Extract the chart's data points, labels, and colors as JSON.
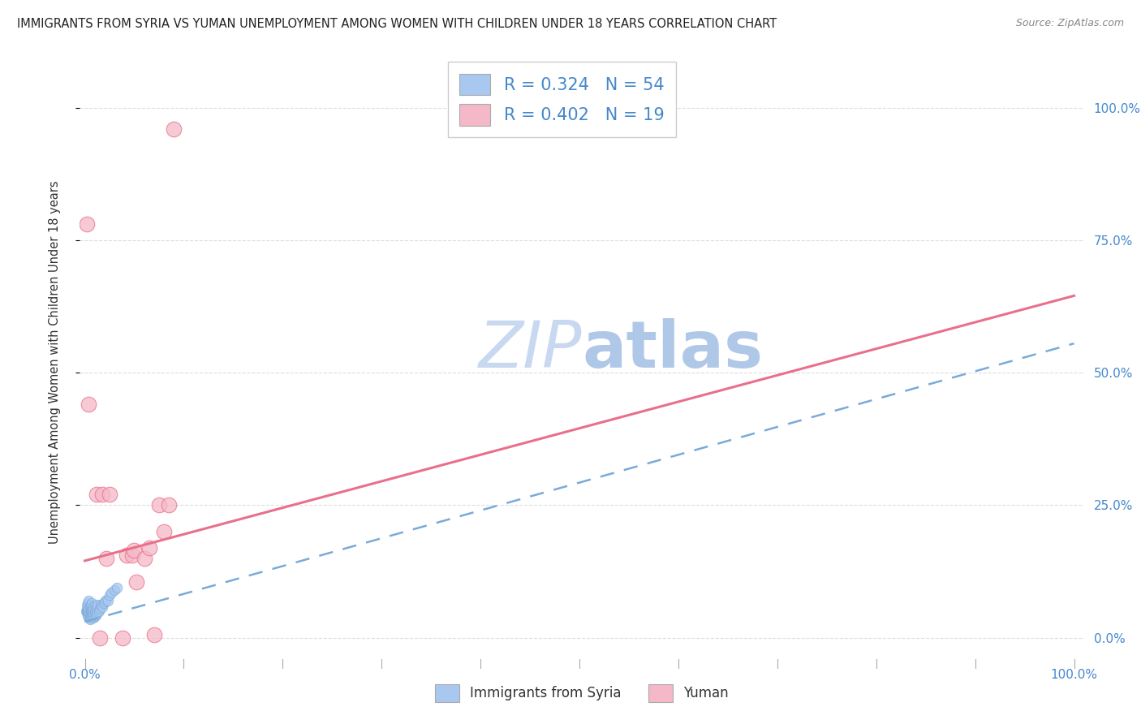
{
  "title": "IMMIGRANTS FROM SYRIA VS YUMAN UNEMPLOYMENT AMONG WOMEN WITH CHILDREN UNDER 18 YEARS CORRELATION CHART",
  "source": "Source: ZipAtlas.com",
  "ylabel": "Unemployment Among Women with Children Under 18 years",
  "ytick_labels_right": [
    "100.0%",
    "75.0%",
    "50.0%",
    "25.0%",
    "0.0%"
  ],
  "ytick_values": [
    1.0,
    0.75,
    0.5,
    0.25,
    0.0
  ],
  "legend_label1": "Immigrants from Syria",
  "legend_label2": "Yuman",
  "legend_r1": "R = 0.324",
  "legend_n1": "N = 54",
  "legend_r2": "R = 0.402",
  "legend_n2": "N = 19",
  "blue_color": "#a8c8f0",
  "pink_color": "#f5b8c8",
  "trendline_blue_color": "#7aaad8",
  "trendline_pink_color": "#e8708a",
  "watermark_zip_color": "#c8d8f0",
  "watermark_atlas_color": "#b0c8e8",
  "background_color": "#ffffff",
  "grid_color": "#dddddd",
  "tick_color": "#4488cc",
  "blue_x": [
    0.001,
    0.002,
    0.002,
    0.002,
    0.003,
    0.003,
    0.003,
    0.003,
    0.003,
    0.004,
    0.004,
    0.004,
    0.004,
    0.004,
    0.005,
    0.005,
    0.005,
    0.005,
    0.006,
    0.006,
    0.006,
    0.006,
    0.007,
    0.007,
    0.007,
    0.007,
    0.008,
    0.008,
    0.008,
    0.009,
    0.009,
    0.009,
    0.01,
    0.01,
    0.01,
    0.011,
    0.011,
    0.012,
    0.012,
    0.013,
    0.013,
    0.014,
    0.015,
    0.016,
    0.017,
    0.018,
    0.019,
    0.02,
    0.022,
    0.023,
    0.025,
    0.027,
    0.03,
    0.032
  ],
  "blue_y": [
    0.05,
    0.048,
    0.052,
    0.06,
    0.042,
    0.045,
    0.05,
    0.055,
    0.065,
    0.038,
    0.04,
    0.048,
    0.055,
    0.07,
    0.035,
    0.04,
    0.05,
    0.06,
    0.038,
    0.045,
    0.052,
    0.06,
    0.04,
    0.048,
    0.055,
    0.065,
    0.042,
    0.05,
    0.058,
    0.038,
    0.045,
    0.055,
    0.04,
    0.05,
    0.06,
    0.042,
    0.055,
    0.045,
    0.058,
    0.048,
    0.062,
    0.05,
    0.055,
    0.06,
    0.062,
    0.058,
    0.065,
    0.068,
    0.072,
    0.07,
    0.08,
    0.085,
    0.09,
    0.095
  ],
  "pink_x": [
    0.002,
    0.004,
    0.012,
    0.015,
    0.018,
    0.022,
    0.025,
    0.038,
    0.042,
    0.048,
    0.05,
    0.052,
    0.06,
    0.065,
    0.07,
    0.075,
    0.08,
    0.085,
    0.09
  ],
  "pink_y": [
    0.78,
    0.44,
    0.27,
    0.0,
    0.27,
    0.15,
    0.27,
    0.0,
    0.155,
    0.155,
    0.165,
    0.105,
    0.15,
    0.17,
    0.005,
    0.25,
    0.2,
    0.25,
    0.96
  ],
  "blue_trendline_x0": 0.0,
  "blue_trendline_y0": 0.03,
  "blue_trendline_x1": 1.0,
  "blue_trendline_y1": 0.555,
  "pink_trendline_x0": 0.0,
  "pink_trendline_y0": 0.145,
  "pink_trendline_x1": 1.0,
  "pink_trendline_y1": 0.645,
  "xlim": [
    -0.005,
    1.01
  ],
  "ylim": [
    -0.04,
    1.08
  ]
}
